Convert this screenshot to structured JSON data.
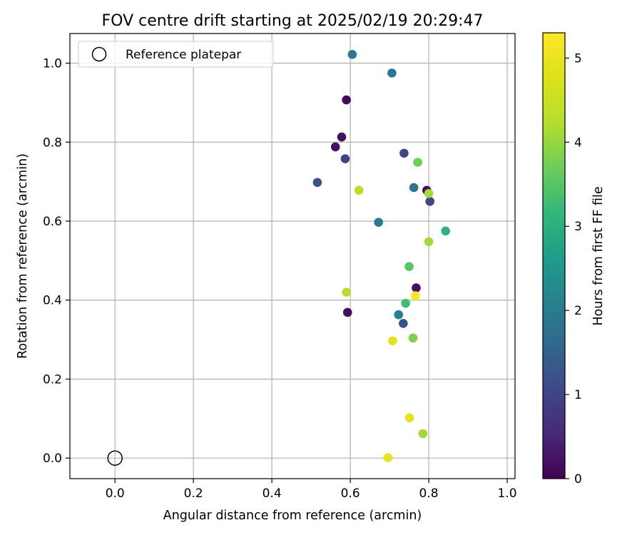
{
  "chart_data": {
    "type": "scatter",
    "title": "FOV centre drift starting at 2025/02/19 20:29:47",
    "xlabel": "Angular distance from reference (arcmin)",
    "ylabel": "Rotation from reference (arcmin)",
    "xlim": [
      -0.115,
      1.02
    ],
    "ylim": [
      -0.052,
      1.075
    ],
    "xticks": [
      "0.0",
      "0.2",
      "0.4",
      "0.6",
      "0.8",
      "1.0"
    ],
    "xtick_values": [
      0.0,
      0.2,
      0.4,
      0.6,
      0.8,
      1.0
    ],
    "yticks": [
      "0.0",
      "0.2",
      "0.4",
      "0.6",
      "0.8",
      "1.0"
    ],
    "ytick_values": [
      0.0,
      0.2,
      0.4,
      0.6,
      0.8,
      1.0
    ],
    "grid": true,
    "legend": {
      "position": "top-left",
      "label": "Reference platepar"
    },
    "reference_point": {
      "x": 0.0,
      "y": 0.0
    },
    "colorbar": {
      "label": "Hours from first FF file",
      "min": 0,
      "max": 5.3,
      "ticks": [
        "0",
        "1",
        "2",
        "3",
        "4",
        "5"
      ],
      "tick_values": [
        0,
        1,
        2,
        3,
        4,
        5
      ],
      "colormap": "viridis"
    },
    "points": [
      {
        "x": 0.59,
        "y": 0.907,
        "t": 0.1
      },
      {
        "x": 0.578,
        "y": 0.813,
        "t": 0.2
      },
      {
        "x": 0.562,
        "y": 0.788,
        "t": 0.2
      },
      {
        "x": 0.795,
        "y": 0.678,
        "t": 0.2
      },
      {
        "x": 0.593,
        "y": 0.369,
        "t": 0.2
      },
      {
        "x": 0.768,
        "y": 0.431,
        "t": 0.2
      },
      {
        "x": 0.587,
        "y": 0.758,
        "t": 1.0
      },
      {
        "x": 0.737,
        "y": 0.772,
        "t": 1.0
      },
      {
        "x": 0.516,
        "y": 0.698,
        "t": 1.2
      },
      {
        "x": 0.803,
        "y": 0.65,
        "t": 1.0
      },
      {
        "x": 0.735,
        "y": 0.341,
        "t": 1.2
      },
      {
        "x": 0.605,
        "y": 1.022,
        "t": 1.9
      },
      {
        "x": 0.706,
        "y": 0.975,
        "t": 1.9
      },
      {
        "x": 0.762,
        "y": 0.685,
        "t": 1.9
      },
      {
        "x": 0.672,
        "y": 0.597,
        "t": 2.0
      },
      {
        "x": 0.723,
        "y": 0.363,
        "t": 2.1
      },
      {
        "x": 0.843,
        "y": 0.575,
        "t": 3.1
      },
      {
        "x": 0.741,
        "y": 0.392,
        "t": 3.3
      },
      {
        "x": 0.75,
        "y": 0.485,
        "t": 3.5
      },
      {
        "x": 0.772,
        "y": 0.749,
        "t": 3.7
      },
      {
        "x": 0.76,
        "y": 0.304,
        "t": 3.8
      },
      {
        "x": 0.8,
        "y": 0.548,
        "t": 4.1
      },
      {
        "x": 0.785,
        "y": 0.062,
        "t": 4.1
      },
      {
        "x": 0.8,
        "y": 0.67,
        "t": 4.1
      },
      {
        "x": 0.622,
        "y": 0.678,
        "t": 4.3
      },
      {
        "x": 0.59,
        "y": 0.42,
        "t": 4.3
      },
      {
        "x": 0.751,
        "y": 0.102,
        "t": 4.9
      },
      {
        "x": 0.708,
        "y": 0.297,
        "t": 4.9
      },
      {
        "x": 0.696,
        "y": 0.001,
        "t": 4.9
      },
      {
        "x": 0.766,
        "y": 0.411,
        "t": 5.2
      }
    ]
  }
}
